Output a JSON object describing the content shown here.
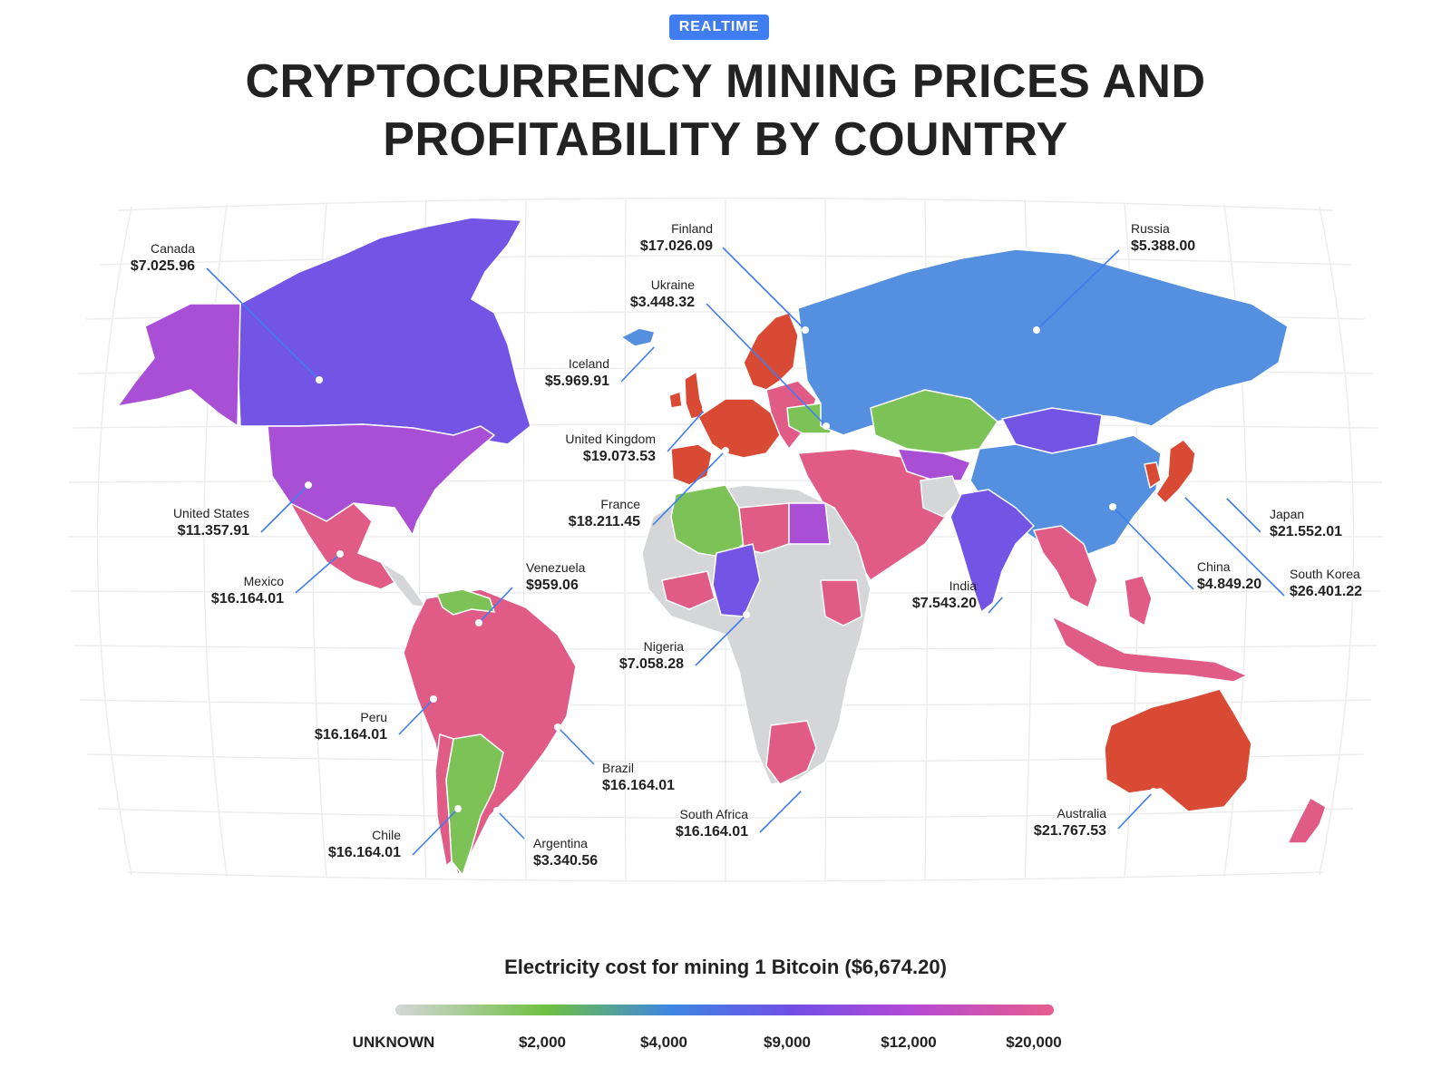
{
  "badge": "REALTIME",
  "title": {
    "line1": "CRYPTOCURRENCY MINING PRICES AND",
    "line2": "PROFITABILITY BY COUNTRY"
  },
  "countries": [
    {
      "name": "Canada",
      "value": "$7.025.96"
    },
    {
      "name": "United States",
      "value": "$11.357.91"
    },
    {
      "name": "Mexico",
      "value": "$16.164.01"
    },
    {
      "name": "Venezuela",
      "value": "$959.06"
    },
    {
      "name": "Peru",
      "value": "$16.164.01"
    },
    {
      "name": "Brazil",
      "value": "$16.164.01"
    },
    {
      "name": "Chile",
      "value": "$16.164.01"
    },
    {
      "name": "Argentina",
      "value": "$3.340.56"
    },
    {
      "name": "Finland",
      "value": "$17.026.09"
    },
    {
      "name": "Ukraine",
      "value": "$3.448.32"
    },
    {
      "name": "Iceland",
      "value": "$5.969.91"
    },
    {
      "name": "United Kingdom",
      "value": "$19.073.53"
    },
    {
      "name": "France",
      "value": "$18.211.45"
    },
    {
      "name": "Nigeria",
      "value": "$7.058.28"
    },
    {
      "name": "South Africa",
      "value": "$16.164.01"
    },
    {
      "name": "Russia",
      "value": "$5.388.00"
    },
    {
      "name": "Japan",
      "value": "$21.552.01"
    },
    {
      "name": "China",
      "value": "$4.849.20"
    },
    {
      "name": "South Korea",
      "value": "$26.401.22"
    },
    {
      "name": "India",
      "value": "$7.543.20"
    },
    {
      "name": "Australia",
      "value": "$21.767.53"
    }
  ],
  "legend": {
    "title": "Electricity cost for mining 1 Bitcoin ($6,674.20)",
    "ticks": [
      "UNKNOWN",
      "$2,000",
      "$4,000",
      "$9,000",
      "$12,000",
      "$20,000"
    ]
  },
  "colors": {
    "unknown": "#d5d6d8",
    "green": "#7cc257",
    "blue": "#5590e0",
    "indigo": "#7355e6",
    "purple": "#a84fd6",
    "pink": "#e05c86",
    "red": "#d94a35",
    "leader": "#3f7df0"
  }
}
